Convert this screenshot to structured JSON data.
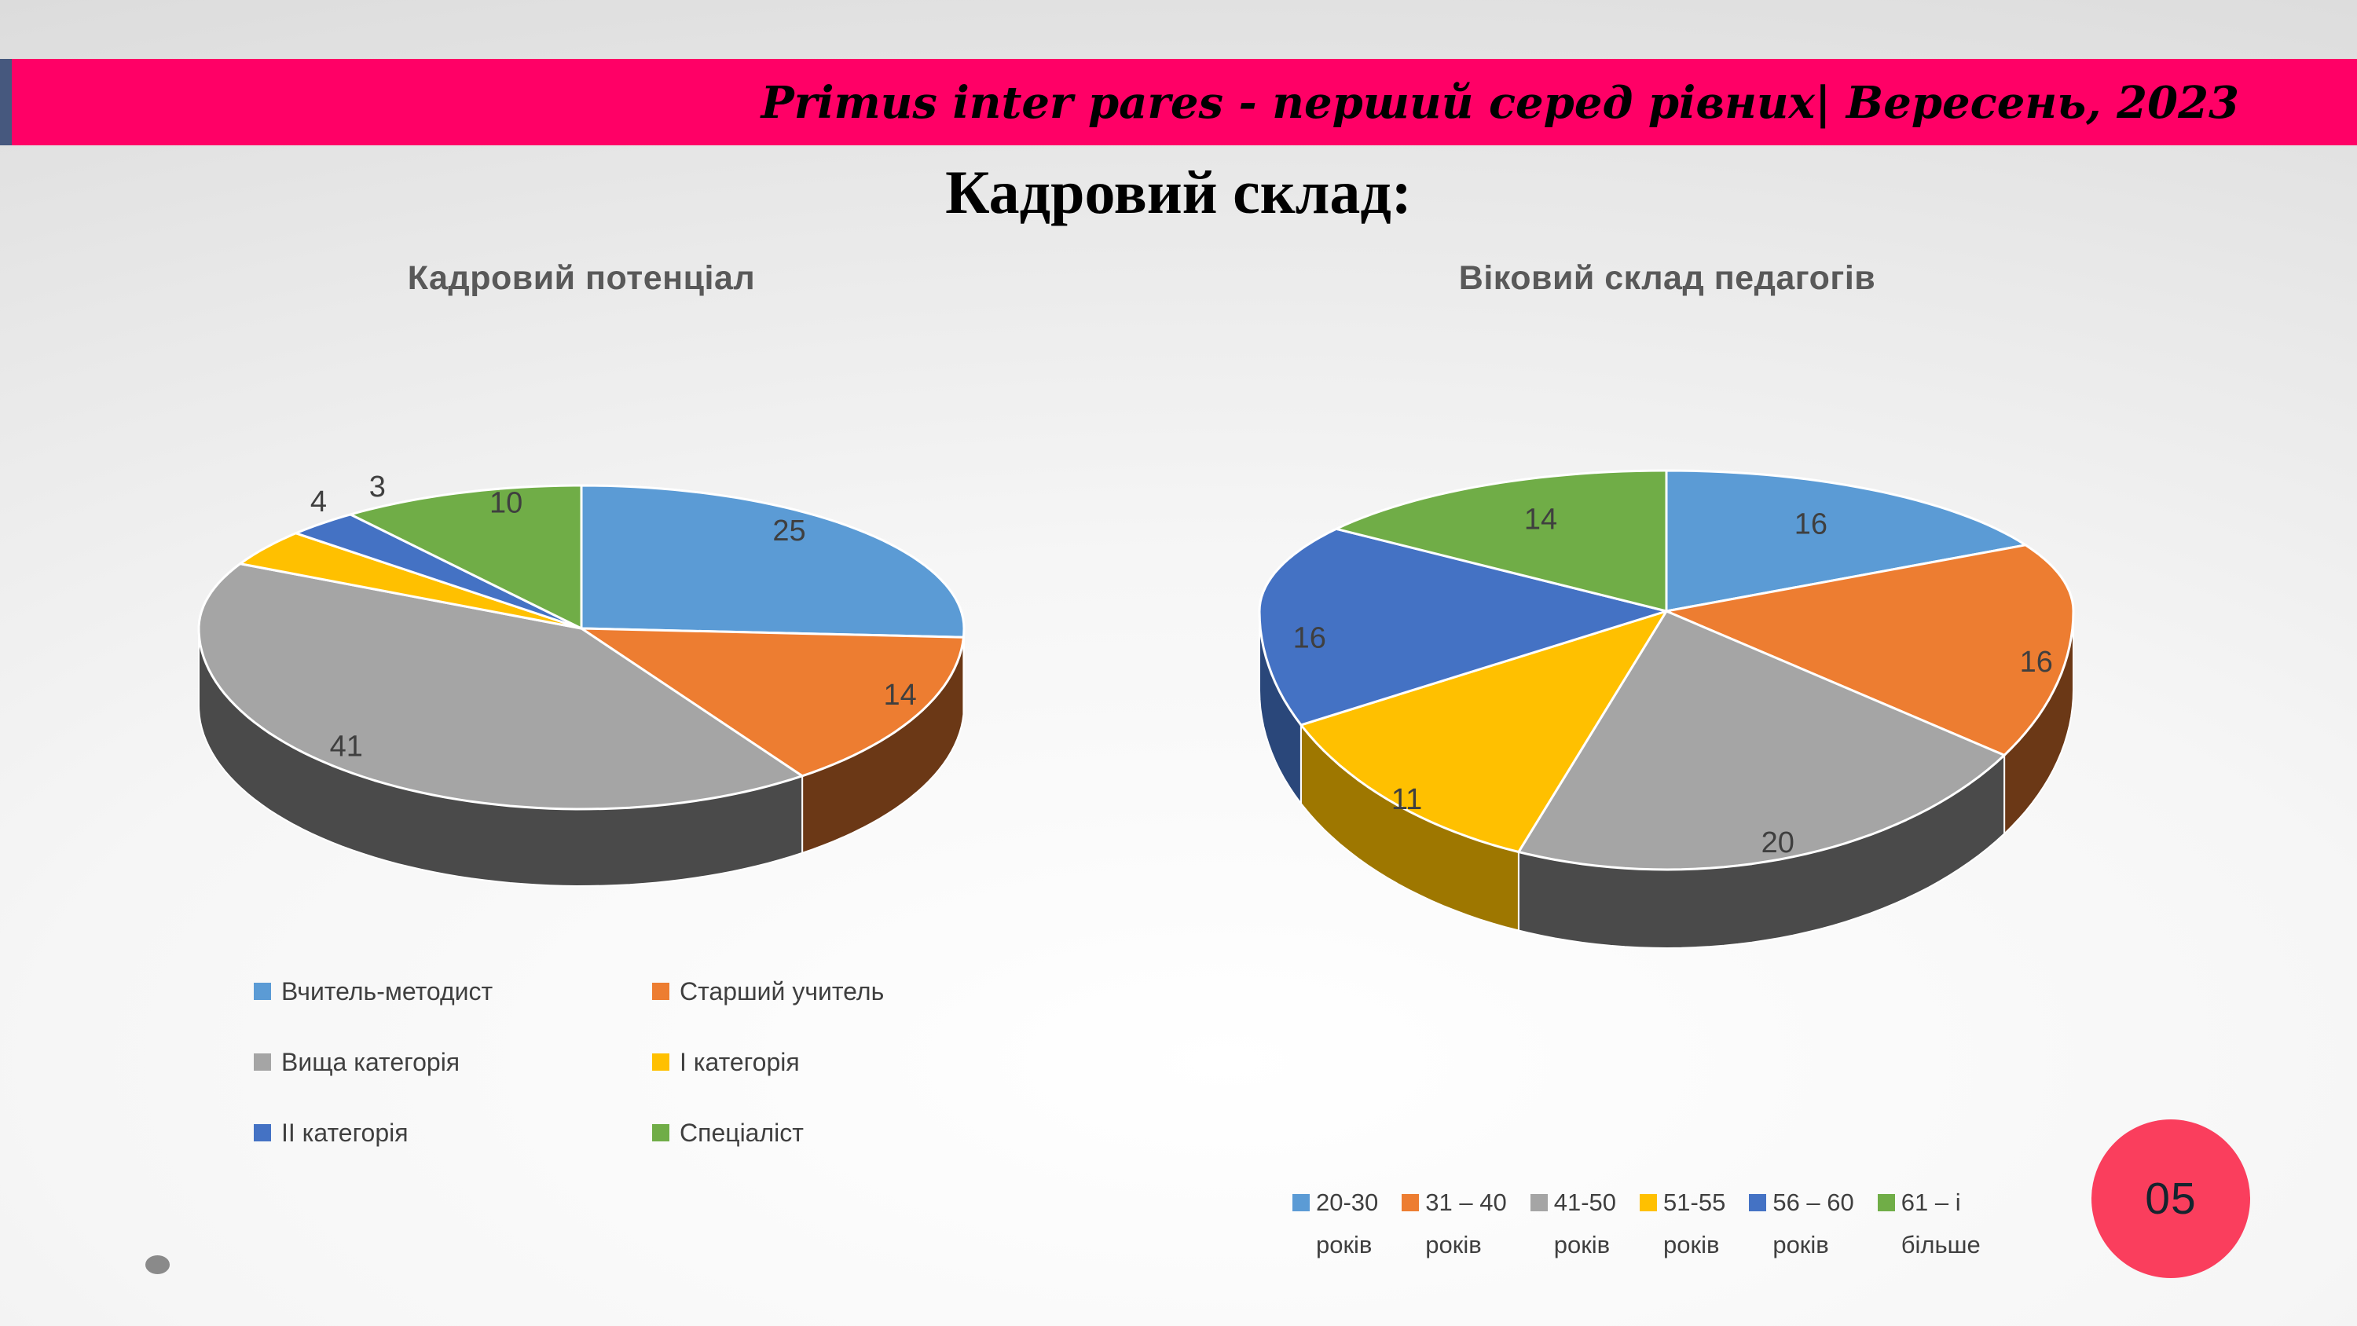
{
  "header": {
    "accent_color": "#46587E",
    "banner_color": "#FF0066",
    "banner_text": "Primus inter pares - перший серед рівних| Вересень, 2023"
  },
  "slide": {
    "title": "Кадровий склад:",
    "page_number": "05",
    "page_circle_color": "#FA3E5D"
  },
  "chart_data": [
    {
      "type": "pie",
      "style": "3d",
      "title": "Кадровий потенціал",
      "data_labels": "values",
      "legend_position": "bottom-two-columns",
      "categories": [
        "Вчитель-методист",
        "Старший учитель",
        "Вища категорія",
        "І категорія",
        "ІІ категорія",
        "Спеціаліст"
      ],
      "values": [
        25,
        14,
        41,
        4,
        3,
        10
      ],
      "colors": [
        "#5B9BD5",
        "#ED7D31",
        "#A5A5A5",
        "#FFC000",
        "#4472C4",
        "#70AD47"
      ]
    },
    {
      "type": "pie",
      "style": "3d",
      "title": "Віковий склад педагогів",
      "data_labels": "values",
      "legend_position": "bottom-row",
      "categories": [
        "20-30 років",
        "31 – 40 років",
        "41-50 років",
        "51-55 років",
        "56 – 60 років",
        "61 – і більше"
      ],
      "legend_two_line": [
        [
          "20-30",
          "років"
        ],
        [
          "31 – 40",
          "років"
        ],
        [
          "41-50",
          "років"
        ],
        [
          "51-55",
          "років"
        ],
        [
          "56 – 60",
          "років"
        ],
        [
          "61 – і",
          "більше"
        ]
      ],
      "values": [
        16,
        16,
        20,
        11,
        16,
        14
      ],
      "colors": [
        "#5B9BD5",
        "#ED7D31",
        "#A5A5A5",
        "#FFC000",
        "#4472C4",
        "#70AD47"
      ]
    }
  ],
  "decorations": {
    "corner_dot_color": "#8A8A8A"
  }
}
